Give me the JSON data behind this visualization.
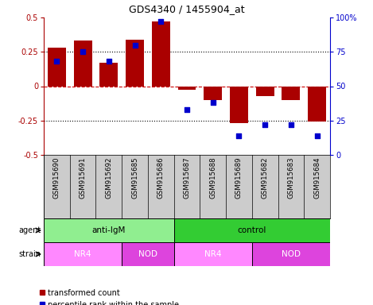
{
  "title": "GDS4340 / 1455904_at",
  "samples": [
    "GSM915690",
    "GSM915691",
    "GSM915692",
    "GSM915685",
    "GSM915686",
    "GSM915687",
    "GSM915688",
    "GSM915689",
    "GSM915682",
    "GSM915683",
    "GSM915684"
  ],
  "transformed_count": [
    0.28,
    0.33,
    0.17,
    0.34,
    0.47,
    -0.025,
    -0.1,
    -0.27,
    -0.07,
    -0.1,
    -0.26
  ],
  "percentile_rank": [
    68,
    75,
    68,
    80,
    97,
    33,
    38,
    14,
    22,
    22,
    14
  ],
  "agent_groups": [
    {
      "label": "anti-IgM",
      "start": 0,
      "end": 5,
      "color": "#90EE90"
    },
    {
      "label": "control",
      "start": 5,
      "end": 11,
      "color": "#33CC33"
    }
  ],
  "strain_groups": [
    {
      "label": "NR4",
      "start": 0,
      "end": 3,
      "color": "#FF88FF"
    },
    {
      "label": "NOD",
      "start": 3,
      "end": 5,
      "color": "#DD44DD"
    },
    {
      "label": "NR4",
      "start": 5,
      "end": 8,
      "color": "#FF88FF"
    },
    {
      "label": "NOD",
      "start": 8,
      "end": 11,
      "color": "#DD44DD"
    }
  ],
  "ylim_left": [
    -0.5,
    0.5
  ],
  "ylim_right": [
    0,
    100
  ],
  "yticks_left": [
    -0.5,
    -0.25,
    0.0,
    0.25,
    0.5
  ],
  "yticks_right": [
    0,
    25,
    50,
    75,
    100
  ],
  "bar_color": "#AA0000",
  "dot_color": "#0000CC",
  "hline_color": "#CC0000",
  "dotted_line_color": "#000000",
  "label_bg": "#CCCCCC",
  "chart_bg": "#FFFFFF"
}
